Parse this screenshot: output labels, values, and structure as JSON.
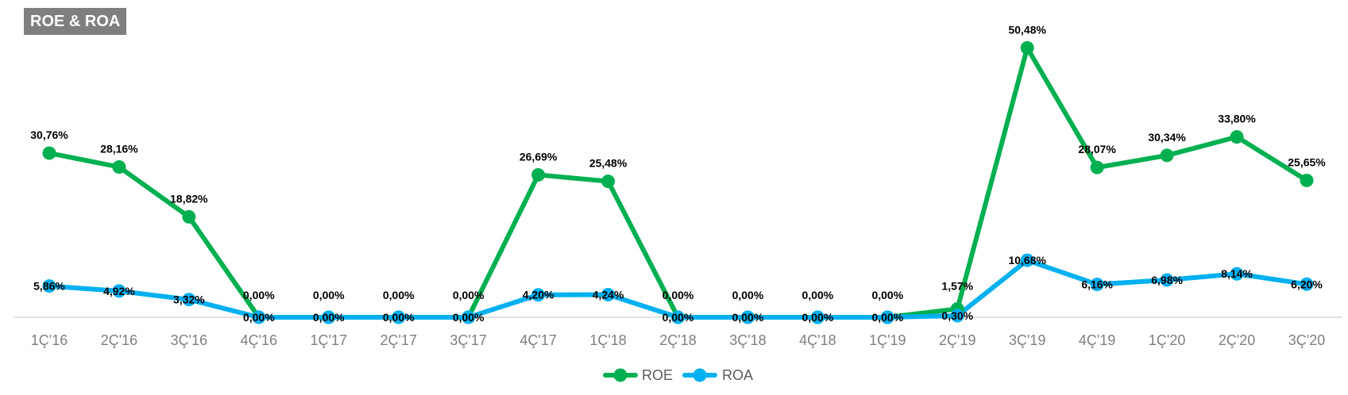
{
  "header": {
    "title": "ROE & ROA"
  },
  "colors": {
    "roe": "#00b050",
    "roa": "#00b0f0",
    "axis": "#d9d9d9",
    "title_bg": "#7f7f7f"
  },
  "chart_data": {
    "type": "line",
    "title": "ROE & ROA",
    "categories": [
      "1Ç'16",
      "2Ç'16",
      "3Ç'16",
      "4Ç'16",
      "1Ç'17",
      "2Ç'17",
      "3Ç'17",
      "4Ç'17",
      "1Ç'18",
      "2Ç'18",
      "3Ç'18",
      "4Ç'18",
      "1Ç'19",
      "2Ç'19",
      "3Ç'19",
      "4Ç'19",
      "1Ç'20",
      "2Ç'20",
      "3Ç'20"
    ],
    "series": [
      {
        "name": "ROE",
        "color": "#00b050",
        "values": [
          30.76,
          28.16,
          18.82,
          0.0,
          0.0,
          0.0,
          0.0,
          26.69,
          25.48,
          0.0,
          0.0,
          0.0,
          0.0,
          1.57,
          50.48,
          28.07,
          30.34,
          33.8,
          25.65
        ],
        "labels": [
          "30,76%",
          "28,16%",
          "18,82%",
          "0,00%",
          "0,00%",
          "0,00%",
          "0,00%",
          "26,69%",
          "25,48%",
          "0,00%",
          "0,00%",
          "0,00%",
          "0,00%",
          "1,57%",
          "50,48%",
          "28,07%",
          "30,34%",
          "33,80%",
          "25,65%"
        ]
      },
      {
        "name": "ROA",
        "color": "#00b0f0",
        "values": [
          5.86,
          4.92,
          3.32,
          0.0,
          0.0,
          0.0,
          0.0,
          4.2,
          4.24,
          0.0,
          0.0,
          0.0,
          0.0,
          0.3,
          10.68,
          6.16,
          6.98,
          8.14,
          6.2
        ],
        "labels": [
          "5,86%",
          "4,92%",
          "3,32%",
          "0,00%",
          "0,00%",
          "0,00%",
          "0,00%",
          "4,20%",
          "4,24%",
          "0,00%",
          "0,00%",
          "0,00%",
          "0,00%",
          "0,30%",
          "10,68%",
          "6,16%",
          "6,98%",
          "8,14%",
          "6,20%"
        ]
      }
    ],
    "ylim": [
      0,
      55
    ],
    "grid": false,
    "legend": "bottom-center"
  }
}
